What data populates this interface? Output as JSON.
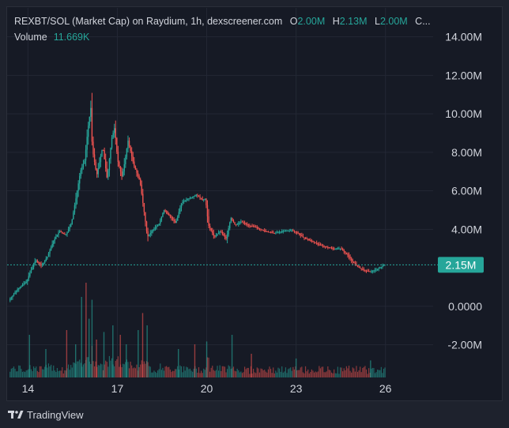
{
  "legend": {
    "symbol": "REXBT/SOL (Market Cap) on Raydium, 1h, dexscreener.com",
    "o_label": "O",
    "o_value": "2.00M",
    "h_label": "H",
    "h_value": "2.13M",
    "l_label": "L",
    "l_value": "2.00M",
    "c_label": "C...",
    "volume_label": "Volume",
    "volume_value": "11.669K"
  },
  "price_label": "2.15M",
  "footer": {
    "brand": "TradingView"
  },
  "colors": {
    "up": "#26a69a",
    "down": "#ef5350",
    "background": "#161a25",
    "grid": "#232734",
    "text": "#d1d4dc"
  },
  "chart_data": {
    "type": "candlestick",
    "y_ticks": [
      "14.00M",
      "12.00M",
      "10.00M",
      "8.00M",
      "6.00M",
      "4.00M",
      "0.0000",
      "-2.00M"
    ],
    "y_tick_values": [
      14,
      12,
      10,
      8,
      6,
      4,
      0,
      -2
    ],
    "x_ticks": [
      "14",
      "17",
      "20",
      "23",
      "26"
    ],
    "x_tick_days": [
      14,
      17,
      20,
      23,
      26
    ],
    "ylim": [
      -3.7,
      15.5
    ],
    "xlim": [
      13.3,
      27.6
    ],
    "last_price": 2.15,
    "price_path": [
      [
        13.4,
        0.3
      ],
      [
        13.7,
        0.9
      ],
      [
        14.0,
        1.3
      ],
      [
        14.15,
        1.9
      ],
      [
        14.3,
        2.4
      ],
      [
        14.5,
        2.1
      ],
      [
        14.7,
        2.6
      ],
      [
        14.9,
        3.4
      ],
      [
        15.1,
        3.9
      ],
      [
        15.3,
        3.7
      ],
      [
        15.5,
        4.3
      ],
      [
        15.65,
        5.6
      ],
      [
        15.8,
        7.0
      ],
      [
        15.95,
        7.6
      ],
      [
        16.05,
        9.2
      ],
      [
        16.15,
        10.3
      ],
      [
        16.2,
        8.2
      ],
      [
        16.35,
        6.8
      ],
      [
        16.55,
        8.3
      ],
      [
        16.7,
        6.6
      ],
      [
        16.85,
        8.7
      ],
      [
        16.95,
        9.3
      ],
      [
        17.05,
        7.6
      ],
      [
        17.2,
        6.7
      ],
      [
        17.3,
        7.6
      ],
      [
        17.4,
        8.6
      ],
      [
        17.6,
        7.3
      ],
      [
        17.8,
        6.5
      ],
      [
        17.95,
        4.8
      ],
      [
        18.05,
        3.6
      ],
      [
        18.2,
        3.9
      ],
      [
        18.45,
        4.3
      ],
      [
        18.6,
        5.0
      ],
      [
        18.8,
        4.7
      ],
      [
        19.0,
        4.3
      ],
      [
        19.2,
        5.4
      ],
      [
        19.45,
        5.6
      ],
      [
        19.7,
        5.8
      ],
      [
        19.9,
        5.5
      ],
      [
        20.0,
        5.6
      ],
      [
        20.1,
        4.2
      ],
      [
        20.3,
        3.6
      ],
      [
        20.5,
        3.9
      ],
      [
        20.7,
        3.5
      ],
      [
        20.85,
        4.6
      ],
      [
        21.0,
        4.2
      ],
      [
        21.2,
        4.4
      ],
      [
        21.45,
        4.2
      ],
      [
        21.7,
        4.1
      ],
      [
        22.0,
        3.9
      ],
      [
        22.3,
        3.8
      ],
      [
        22.6,
        3.9
      ],
      [
        22.9,
        3.95
      ],
      [
        23.1,
        3.8
      ],
      [
        23.3,
        3.55
      ],
      [
        23.55,
        3.4
      ],
      [
        23.8,
        3.2
      ],
      [
        24.0,
        3.1
      ],
      [
        24.3,
        3.0
      ],
      [
        24.55,
        3.0
      ],
      [
        24.75,
        2.7
      ],
      [
        24.95,
        2.3
      ],
      [
        25.15,
        2.0
      ],
      [
        25.35,
        1.85
      ],
      [
        25.55,
        1.8
      ],
      [
        25.8,
        1.95
      ],
      [
        26.0,
        2.15
      ]
    ],
    "volume_spikes": [
      [
        14.05,
        0.45
      ],
      [
        14.6,
        0.3
      ],
      [
        15.3,
        0.5
      ],
      [
        15.6,
        0.35
      ],
      [
        15.8,
        0.85
      ],
      [
        15.95,
        1.0
      ],
      [
        16.05,
        0.62
      ],
      [
        16.15,
        0.82
      ],
      [
        16.3,
        0.4
      ],
      [
        16.55,
        0.48
      ],
      [
        16.85,
        0.55
      ],
      [
        17.1,
        0.45
      ],
      [
        17.3,
        0.35
      ],
      [
        17.7,
        0.5
      ],
      [
        17.85,
        0.68
      ],
      [
        18.0,
        0.55
      ],
      [
        19.05,
        0.3
      ],
      [
        19.6,
        0.35
      ],
      [
        20.0,
        0.38
      ],
      [
        20.85,
        0.45
      ],
      [
        21.5,
        0.25
      ],
      [
        23.0,
        0.2
      ],
      [
        25.5,
        0.18
      ]
    ]
  }
}
